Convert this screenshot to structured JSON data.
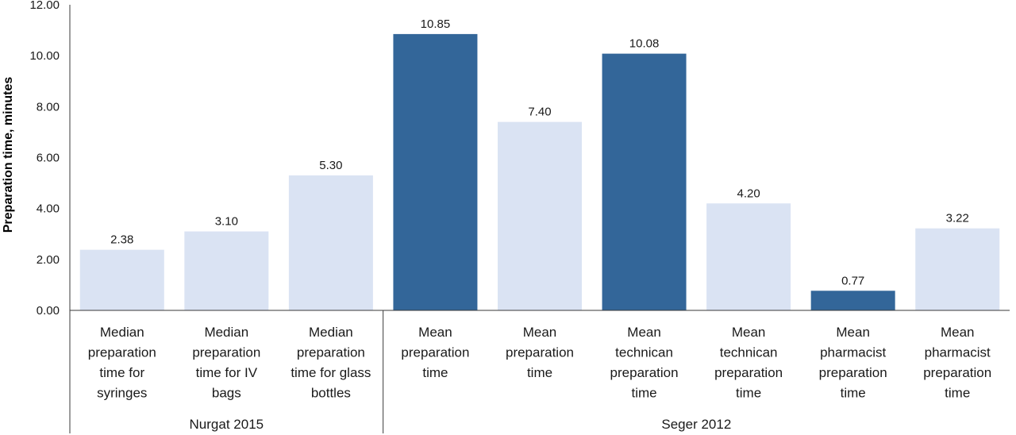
{
  "chart_data": {
    "type": "bar",
    "ylabel": "Preparation time, minutes",
    "ylim": [
      0,
      12
    ],
    "yticks": [
      "0.00",
      "2.00",
      "4.00",
      "6.00",
      "8.00",
      "10.00",
      "12.00"
    ],
    "grid": false,
    "colors": {
      "light": "#dae3f3",
      "dark": "#336699"
    },
    "bars": [
      {
        "label": [
          "Median",
          "preparation",
          "time for",
          "syringes"
        ],
        "value": 2.38,
        "value_label": "2.38",
        "shade": "light"
      },
      {
        "label": [
          "Median",
          "preparation",
          "time for IV",
          "bags"
        ],
        "value": 3.1,
        "value_label": "3.10",
        "shade": "light"
      },
      {
        "label": [
          "Median",
          "preparation",
          "time for glass",
          "bottles"
        ],
        "value": 5.3,
        "value_label": "5.30",
        "shade": "light"
      },
      {
        "label": [
          "Mean",
          "preparation",
          "time"
        ],
        "value": 10.85,
        "value_label": "10.85",
        "shade": "dark"
      },
      {
        "label": [
          "Mean",
          "preparation",
          "time"
        ],
        "value": 7.4,
        "value_label": "7.40",
        "shade": "light"
      },
      {
        "label": [
          "Mean",
          "technican",
          "preparation",
          "time"
        ],
        "value": 10.08,
        "value_label": "10.08",
        "shade": "dark"
      },
      {
        "label": [
          "Mean",
          "technican",
          "preparation",
          "time"
        ],
        "value": 4.2,
        "value_label": "4.20",
        "shade": "light"
      },
      {
        "label": [
          "Mean",
          "pharmacist",
          "preparation",
          "time"
        ],
        "value": 0.77,
        "value_label": "0.77",
        "shade": "dark"
      },
      {
        "label": [
          "Mean",
          "pharmacist",
          "preparation",
          "time"
        ],
        "value": 3.22,
        "value_label": "3.22",
        "shade": "light"
      }
    ],
    "groups": [
      {
        "name": "Nurgat 2015",
        "start": 0,
        "end": 2
      },
      {
        "name": "Seger 2012",
        "start": 3,
        "end": 8
      }
    ]
  }
}
